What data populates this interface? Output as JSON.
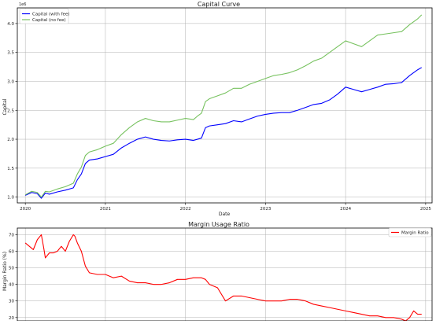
{
  "chart_data": [
    {
      "type": "line",
      "title": "Capital Curve",
      "xlabel": "Date",
      "ylabel": "Capital",
      "y_offset_label": "1e6",
      "xlim": [
        2019.9,
        2025.08
      ],
      "ylim": [
        0.9,
        4.27
      ],
      "x_ticks": [
        2020,
        2021,
        2022,
        2023,
        2024,
        2025
      ],
      "x_tick_labels": [
        "2020",
        "2021",
        "2022",
        "2023",
        "2024",
        "2025"
      ],
      "y_ticks": [
        1.0,
        1.5,
        2.0,
        2.5,
        3.0,
        3.5,
        4.0
      ],
      "y_tick_labels": [
        "1.0",
        "1.5",
        "2.0",
        "2.5",
        "3.0",
        "3.5",
        "4.0"
      ],
      "grid": true,
      "legend": "top-left",
      "series": [
        {
          "name": "Capital (with fee)",
          "color": "#0000ff",
          "x": [
            2020.0,
            2020.08,
            2020.15,
            2020.2,
            2020.25,
            2020.3,
            2020.4,
            2020.5,
            2020.6,
            2020.65,
            2020.7,
            2020.75,
            2020.8,
            2020.9,
            2021.0,
            2021.1,
            2021.2,
            2021.3,
            2021.4,
            2021.5,
            2021.6,
            2021.7,
            2021.8,
            2021.9,
            2022.0,
            2022.1,
            2022.15,
            2022.2,
            2022.25,
            2022.3,
            2022.4,
            2022.5,
            2022.6,
            2022.7,
            2022.8,
            2022.9,
            2023.0,
            2023.1,
            2023.2,
            2023.3,
            2023.4,
            2023.5,
            2023.6,
            2023.7,
            2023.8,
            2023.9,
            2024.0,
            2024.1,
            2024.2,
            2024.3,
            2024.4,
            2024.5,
            2024.6,
            2024.7,
            2024.8,
            2024.9,
            2024.95
          ],
          "values": [
            1.03,
            1.08,
            1.06,
            0.98,
            1.07,
            1.05,
            1.09,
            1.12,
            1.16,
            1.3,
            1.4,
            1.58,
            1.64,
            1.66,
            1.7,
            1.74,
            1.85,
            1.93,
            2.0,
            2.04,
            2.0,
            1.98,
            1.97,
            1.99,
            2.0,
            1.98,
            2.0,
            2.02,
            2.2,
            2.23,
            2.25,
            2.27,
            2.32,
            2.3,
            2.35,
            2.4,
            2.43,
            2.45,
            2.46,
            2.46,
            2.5,
            2.55,
            2.6,
            2.62,
            2.68,
            2.78,
            2.9,
            2.86,
            2.82,
            2.86,
            2.9,
            2.95,
            2.96,
            2.98,
            3.1,
            3.2,
            3.24
          ]
        },
        {
          "name": "Capital (no fee)",
          "color": "#77c25f",
          "x": [
            2020.0,
            2020.08,
            2020.15,
            2020.2,
            2020.25,
            2020.3,
            2020.4,
            2020.5,
            2020.6,
            2020.65,
            2020.7,
            2020.75,
            2020.8,
            2020.9,
            2021.0,
            2021.1,
            2021.2,
            2021.3,
            2021.4,
            2021.5,
            2021.6,
            2021.7,
            2021.8,
            2021.9,
            2022.0,
            2022.1,
            2022.15,
            2022.2,
            2022.25,
            2022.3,
            2022.4,
            2022.5,
            2022.6,
            2022.7,
            2022.8,
            2022.9,
            2023.0,
            2023.1,
            2023.2,
            2023.3,
            2023.4,
            2023.5,
            2023.6,
            2023.7,
            2023.8,
            2023.9,
            2024.0,
            2024.1,
            2024.2,
            2024.3,
            2024.4,
            2024.5,
            2024.6,
            2024.7,
            2024.8,
            2024.9,
            2024.95
          ],
          "values": [
            1.04,
            1.1,
            1.08,
            1.0,
            1.1,
            1.09,
            1.14,
            1.18,
            1.24,
            1.4,
            1.52,
            1.72,
            1.78,
            1.82,
            1.88,
            1.93,
            2.08,
            2.2,
            2.3,
            2.36,
            2.32,
            2.3,
            2.3,
            2.33,
            2.36,
            2.34,
            2.4,
            2.45,
            2.65,
            2.7,
            2.75,
            2.8,
            2.88,
            2.88,
            2.95,
            3.0,
            3.05,
            3.1,
            3.12,
            3.15,
            3.2,
            3.27,
            3.35,
            3.4,
            3.5,
            3.6,
            3.7,
            3.65,
            3.6,
            3.7,
            3.8,
            3.82,
            3.84,
            3.86,
            3.98,
            4.08,
            4.15
          ]
        }
      ]
    },
    {
      "type": "line",
      "title": "Margin Usage Ratio",
      "xlabel": "",
      "ylabel": "Margin Ratio (%)",
      "xlim": [
        2019.9,
        2025.08
      ],
      "ylim": [
        18,
        74
      ],
      "y_ticks": [
        20,
        30,
        40,
        50,
        60,
        70
      ],
      "y_tick_labels": [
        "20",
        "30",
        "40",
        "50",
        "60",
        "70"
      ],
      "grid": true,
      "legend": "top-right",
      "series": [
        {
          "name": "Margin Ratio",
          "color": "#ff0000",
          "x": [
            2020.0,
            2020.05,
            2020.1,
            2020.15,
            2020.2,
            2020.23,
            2020.25,
            2020.3,
            2020.35,
            2020.4,
            2020.45,
            2020.5,
            2020.55,
            2020.6,
            2020.62,
            2020.65,
            2020.7,
            2020.75,
            2020.8,
            2020.9,
            2021.0,
            2021.1,
            2021.2,
            2021.3,
            2021.4,
            2021.5,
            2021.6,
            2021.7,
            2021.8,
            2021.9,
            2022.0,
            2022.1,
            2022.2,
            2022.25,
            2022.3,
            2022.4,
            2022.5,
            2022.6,
            2022.7,
            2022.8,
            2022.9,
            2023.0,
            2023.1,
            2023.2,
            2023.3,
            2023.4,
            2023.5,
            2023.6,
            2023.7,
            2023.8,
            2023.9,
            2024.0,
            2024.1,
            2024.2,
            2024.3,
            2024.4,
            2024.5,
            2024.6,
            2024.7,
            2024.75,
            2024.8,
            2024.85,
            2024.9,
            2024.95
          ],
          "values": [
            65,
            63,
            61,
            67,
            70,
            62,
            56,
            59,
            59,
            60,
            63,
            60,
            66,
            70,
            69,
            65,
            60,
            51,
            47,
            46,
            46,
            44,
            45,
            42,
            41,
            41,
            40,
            40,
            41,
            43,
            43,
            44,
            44,
            43,
            40,
            38,
            30,
            33,
            33,
            32,
            31,
            30,
            30,
            30,
            31,
            31,
            30,
            28,
            27,
            26,
            25,
            24,
            23,
            22,
            21,
            21,
            20,
            20,
            19,
            18,
            20,
            24,
            22,
            22
          ]
        }
      ]
    }
  ]
}
